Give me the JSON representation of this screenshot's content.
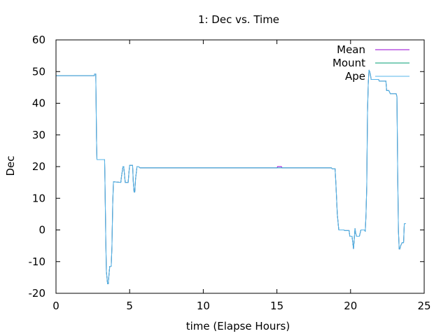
{
  "chart_data": {
    "type": "line",
    "title": "1: Dec vs. Time",
    "xlabel": "time (Elapse Hours)",
    "ylabel": "Dec",
    "xlim": [
      0,
      25
    ],
    "ylim": [
      -20,
      60
    ],
    "xticks": [
      0,
      5,
      10,
      15,
      20,
      25
    ],
    "yticks": [
      -20,
      -10,
      0,
      10,
      20,
      30,
      40,
      50,
      60
    ],
    "grid": false,
    "legend_position": "top-right",
    "series": [
      {
        "name": "Mean",
        "color": "#9400d3",
        "points": [
          [
            0,
            48.7
          ],
          [
            2.6,
            48.7
          ],
          [
            2.62,
            49.2
          ],
          [
            2.7,
            49.2
          ],
          [
            2.72,
            42
          ],
          [
            2.75,
            29
          ],
          [
            2.78,
            22.2
          ],
          [
            3.3,
            22.2
          ],
          [
            3.33,
            14
          ],
          [
            3.38,
            -3
          ],
          [
            3.42,
            -13
          ],
          [
            3.5,
            -17
          ],
          [
            3.55,
            -17
          ],
          [
            3.6,
            -14
          ],
          [
            3.65,
            -11.5
          ],
          [
            3.75,
            -11.5
          ],
          [
            3.8,
            -5
          ],
          [
            3.85,
            8
          ],
          [
            3.9,
            15.2
          ],
          [
            4.4,
            15
          ],
          [
            4.45,
            17
          ],
          [
            4.55,
            20
          ],
          [
            4.6,
            20
          ],
          [
            4.7,
            15
          ],
          [
            4.9,
            15
          ],
          [
            4.95,
            18
          ],
          [
            5.0,
            20.4
          ],
          [
            5.2,
            20.4
          ],
          [
            5.25,
            15
          ],
          [
            5.3,
            12
          ],
          [
            5.35,
            12
          ],
          [
            5.4,
            16
          ],
          [
            5.5,
            20
          ],
          [
            5.6,
            20
          ],
          [
            5.7,
            19.6
          ],
          [
            6.0,
            19.6
          ],
          [
            15.0,
            19.6
          ],
          [
            15.05,
            20
          ],
          [
            15.3,
            20
          ],
          [
            15.35,
            19.6
          ],
          [
            18.7,
            19.6
          ],
          [
            18.75,
            19.3
          ],
          [
            18.95,
            19.3
          ],
          [
            19.0,
            15
          ],
          [
            19.1,
            5
          ],
          [
            19.2,
            0
          ],
          [
            19.55,
            0
          ],
          [
            19.6,
            -0.2
          ],
          [
            19.9,
            -0.2
          ],
          [
            19.95,
            -2
          ],
          [
            20.1,
            -2
          ],
          [
            20.15,
            -4
          ],
          [
            20.2,
            -6
          ],
          [
            20.25,
            -3
          ],
          [
            20.3,
            0.5
          ],
          [
            20.35,
            -1
          ],
          [
            20.4,
            -2
          ],
          [
            20.6,
            -2
          ],
          [
            20.65,
            -1
          ],
          [
            20.7,
            0
          ],
          [
            20.95,
            0
          ],
          [
            21.0,
            -0.5
          ],
          [
            21.05,
            5
          ],
          [
            21.1,
            14
          ],
          [
            21.15,
            37
          ],
          [
            21.2,
            46
          ],
          [
            21.25,
            50.5
          ],
          [
            21.3,
            50
          ],
          [
            21.35,
            49
          ],
          [
            21.4,
            47.5
          ],
          [
            21.9,
            47.5
          ],
          [
            21.95,
            47
          ],
          [
            22.4,
            47
          ],
          [
            22.45,
            44
          ],
          [
            22.6,
            44
          ],
          [
            22.7,
            43
          ],
          [
            23.1,
            43
          ],
          [
            23.15,
            42
          ],
          [
            23.2,
            18
          ],
          [
            23.25,
            0
          ],
          [
            23.3,
            -6
          ],
          [
            23.35,
            -6
          ],
          [
            23.4,
            -5
          ],
          [
            23.5,
            -4
          ],
          [
            23.6,
            -4
          ],
          [
            23.65,
            2
          ],
          [
            23.75,
            2
          ]
        ]
      },
      {
        "name": "Mount",
        "color": "#009e73",
        "points": [
          [
            0,
            48.7
          ],
          [
            2.6,
            48.7
          ],
          [
            2.62,
            49.2
          ],
          [
            2.7,
            49.2
          ],
          [
            2.72,
            42
          ],
          [
            2.75,
            29
          ],
          [
            2.78,
            22.2
          ],
          [
            3.3,
            22.2
          ],
          [
            3.33,
            14
          ],
          [
            3.38,
            -3
          ],
          [
            3.42,
            -13
          ],
          [
            3.5,
            -17
          ],
          [
            3.55,
            -17
          ],
          [
            3.6,
            -14
          ],
          [
            3.65,
            -11.5
          ],
          [
            3.75,
            -11.5
          ],
          [
            3.8,
            -5
          ],
          [
            3.85,
            8
          ],
          [
            3.9,
            15.2
          ],
          [
            4.4,
            15
          ],
          [
            4.45,
            17
          ],
          [
            4.55,
            20
          ],
          [
            4.6,
            20
          ],
          [
            4.7,
            15
          ],
          [
            4.9,
            15
          ],
          [
            4.95,
            18
          ],
          [
            5.0,
            20.4
          ],
          [
            5.2,
            20.4
          ],
          [
            5.25,
            15
          ],
          [
            5.3,
            12
          ],
          [
            5.35,
            12
          ],
          [
            5.4,
            16
          ],
          [
            5.5,
            20
          ],
          [
            5.6,
            20
          ],
          [
            5.7,
            19.6
          ],
          [
            6.0,
            19.6
          ],
          [
            18.7,
            19.6
          ],
          [
            18.75,
            19.3
          ],
          [
            18.95,
            19.3
          ],
          [
            19.0,
            15
          ],
          [
            19.1,
            5
          ],
          [
            19.2,
            0
          ],
          [
            19.55,
            0
          ],
          [
            19.6,
            -0.2
          ],
          [
            19.9,
            -0.2
          ],
          [
            19.95,
            -2
          ],
          [
            20.1,
            -2
          ],
          [
            20.15,
            -4
          ],
          [
            20.2,
            -6
          ],
          [
            20.25,
            -3
          ],
          [
            20.3,
            0.5
          ],
          [
            20.35,
            -1
          ],
          [
            20.4,
            -2
          ],
          [
            20.6,
            -2
          ],
          [
            20.65,
            -1
          ],
          [
            20.7,
            0
          ],
          [
            20.95,
            0
          ],
          [
            21.0,
            -0.5
          ],
          [
            21.05,
            5
          ],
          [
            21.1,
            14
          ],
          [
            21.15,
            37
          ],
          [
            21.2,
            46
          ],
          [
            21.25,
            50.5
          ],
          [
            21.3,
            50
          ],
          [
            21.35,
            49
          ],
          [
            21.4,
            47.5
          ],
          [
            21.9,
            47.5
          ],
          [
            21.95,
            47
          ],
          [
            22.4,
            47
          ],
          [
            22.45,
            44
          ],
          [
            22.6,
            44
          ],
          [
            22.7,
            43
          ],
          [
            23.1,
            43
          ],
          [
            23.15,
            42
          ],
          [
            23.2,
            18
          ],
          [
            23.25,
            0
          ],
          [
            23.3,
            -6
          ],
          [
            23.35,
            -6
          ],
          [
            23.4,
            -5
          ],
          [
            23.5,
            -4
          ],
          [
            23.6,
            -4
          ],
          [
            23.65,
            2
          ],
          [
            23.75,
            2
          ]
        ]
      },
      {
        "name": "Ape",
        "color": "#56b4e9",
        "points": [
          [
            0,
            48.7
          ],
          [
            2.6,
            48.7
          ],
          [
            2.62,
            49.2
          ],
          [
            2.7,
            49.2
          ],
          [
            2.72,
            42
          ],
          [
            2.75,
            29
          ],
          [
            2.78,
            22.2
          ],
          [
            3.3,
            22.2
          ],
          [
            3.33,
            14
          ],
          [
            3.38,
            -3
          ],
          [
            3.42,
            -13
          ],
          [
            3.5,
            -17
          ],
          [
            3.55,
            -17
          ],
          [
            3.6,
            -14
          ],
          [
            3.65,
            -11.5
          ],
          [
            3.75,
            -11.5
          ],
          [
            3.8,
            -5
          ],
          [
            3.85,
            8
          ],
          [
            3.9,
            15.2
          ],
          [
            4.4,
            15
          ],
          [
            4.45,
            17
          ],
          [
            4.55,
            20
          ],
          [
            4.6,
            20
          ],
          [
            4.7,
            15
          ],
          [
            4.9,
            15
          ],
          [
            4.95,
            18
          ],
          [
            5.0,
            20.4
          ],
          [
            5.2,
            20.4
          ],
          [
            5.25,
            15
          ],
          [
            5.3,
            12
          ],
          [
            5.35,
            12
          ],
          [
            5.4,
            16
          ],
          [
            5.5,
            20
          ],
          [
            5.6,
            20
          ],
          [
            5.7,
            19.6
          ],
          [
            6.0,
            19.6
          ],
          [
            18.7,
            19.6
          ],
          [
            18.75,
            19.3
          ],
          [
            18.95,
            19.3
          ],
          [
            19.0,
            15
          ],
          [
            19.1,
            5
          ],
          [
            19.2,
            0
          ],
          [
            19.55,
            0
          ],
          [
            19.6,
            -0.2
          ],
          [
            19.9,
            -0.2
          ],
          [
            19.95,
            -2
          ],
          [
            20.1,
            -2
          ],
          [
            20.15,
            -4
          ],
          [
            20.2,
            -6
          ],
          [
            20.25,
            -3
          ],
          [
            20.3,
            0.5
          ],
          [
            20.35,
            -1
          ],
          [
            20.4,
            -2
          ],
          [
            20.6,
            -2
          ],
          [
            20.65,
            -1
          ],
          [
            20.7,
            0
          ],
          [
            20.95,
            0
          ],
          [
            21.0,
            -0.5
          ],
          [
            21.05,
            5
          ],
          [
            21.1,
            14
          ],
          [
            21.15,
            37
          ],
          [
            21.2,
            46
          ],
          [
            21.25,
            50.5
          ],
          [
            21.3,
            50
          ],
          [
            21.35,
            49
          ],
          [
            21.4,
            47.5
          ],
          [
            21.9,
            47.5
          ],
          [
            21.95,
            47
          ],
          [
            22.4,
            47
          ],
          [
            22.45,
            44
          ],
          [
            22.6,
            44
          ],
          [
            22.7,
            43
          ],
          [
            23.1,
            43
          ],
          [
            23.15,
            42
          ],
          [
            23.2,
            18
          ],
          [
            23.25,
            0
          ],
          [
            23.3,
            -6
          ],
          [
            23.35,
            -6
          ],
          [
            23.4,
            -5
          ],
          [
            23.5,
            -4
          ],
          [
            23.6,
            -4
          ],
          [
            23.65,
            2
          ],
          [
            23.75,
            2
          ]
        ]
      }
    ]
  }
}
